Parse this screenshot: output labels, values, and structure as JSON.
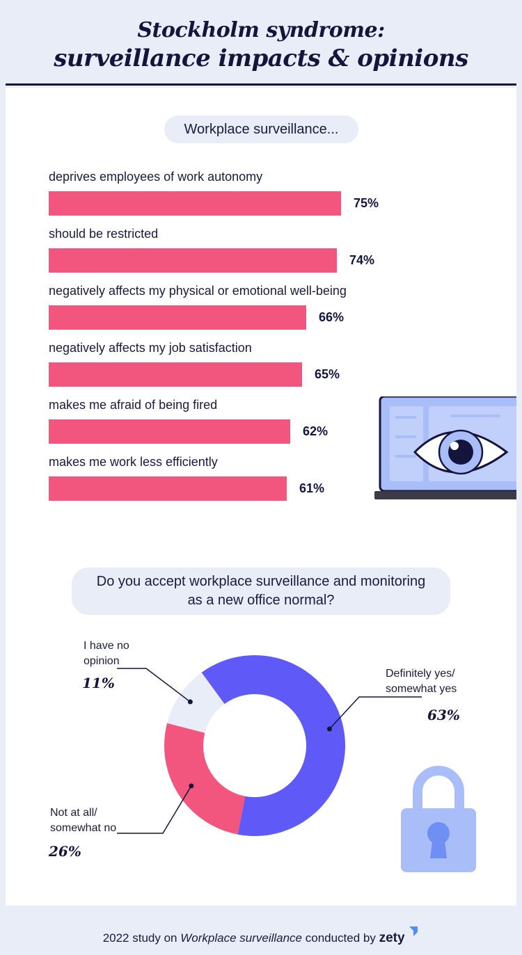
{
  "header": {
    "title_line1": "Stockholm syndrome:",
    "title_line2": "surveillance impacts & opinions"
  },
  "section1": {
    "pill": "Workplace surveillance..."
  },
  "section2": {
    "question_line1": "Do you accept workplace surveillance and monitoring",
    "question_line2": "as a new office normal?"
  },
  "chart_data": [
    {
      "type": "bar",
      "orientation": "horizontal",
      "title": "Workplace surveillance...",
      "categories": [
        "deprives employees of work autonomy",
        "should be restricted",
        "negatively affects my physical or emotional well-being",
        "negatively affects my job satisfaction",
        "makes me afraid of being fired",
        "makes me work less efficiently"
      ],
      "values": [
        75,
        74,
        66,
        65,
        62,
        61
      ],
      "value_labels": [
        "75%",
        "74%",
        "66%",
        "65%",
        "62%",
        "61%"
      ],
      "unit": "%",
      "bar_color": "#f2567e",
      "grid": false
    },
    {
      "type": "pie",
      "variant": "donut",
      "title": "Do you accept workplace surveillance and monitoring as a new office normal?",
      "slices": [
        {
          "label_line1": "Definitely yes/",
          "label_line2": "somewhat yes",
          "value": 63,
          "value_label": "63%",
          "color": "#5f59f7"
        },
        {
          "label_line1": "Not at all/",
          "label_line2": "somewhat no",
          "value": 26,
          "value_label": "26%",
          "color": "#f2567e"
        },
        {
          "label_line1": "I have no",
          "label_line2": "opinion",
          "value": 11,
          "value_label": "11%",
          "color": "#e9edf7"
        }
      ]
    }
  ],
  "footer": {
    "prefix": "2022 study on ",
    "emphasis": "Workplace surveillance",
    "suffix": " conducted by ",
    "brand": "zety"
  },
  "colors": {
    "navy": "#14143c",
    "pink": "#f2567e",
    "purple": "#5f59f7",
    "light": "#e9edf7",
    "icon_blue": "#a9bdf9"
  },
  "icons": [
    "laptop-eye-icon",
    "padlock-icon",
    "zety-logo-icon"
  ]
}
